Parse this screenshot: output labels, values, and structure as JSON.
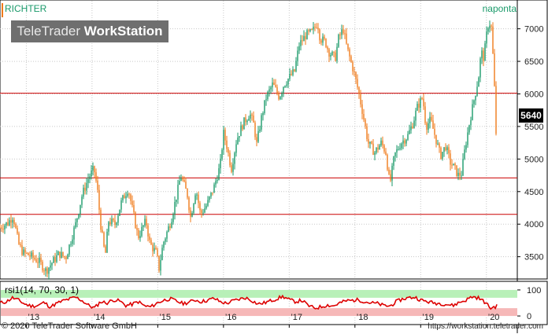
{
  "header": {
    "ticker": "RICHTER",
    "period": "naponta",
    "brand_light": "TeleTrader ",
    "brand_bold": "WorkStation"
  },
  "footer": {
    "copyright": "© 2020 TeleTrader Software GmbH",
    "source": "https://workstation.teletrader.com"
  },
  "colors": {
    "up": "#1a9a6a",
    "down": "#f07a1a",
    "hline": "#cc0000",
    "rsi_line": "#dd0000",
    "rsi_upper_band": "#b8f0b8",
    "rsi_lower_band": "#f6b8b8",
    "grid": "#c8c8c8"
  },
  "chart_data": [
    {
      "type": "candlestick",
      "title": "RICHTER",
      "x_unit": "year",
      "xlim": [
        2012.6,
        2020.47
      ],
      "ylim": [
        3170,
        7430
      ],
      "x_tick_labels": [
        "13",
        "14",
        "15",
        "16",
        "17",
        "18",
        "19",
        "20"
      ],
      "x_ticks": [
        2013,
        2014,
        2015,
        2016,
        2017,
        2018,
        2019,
        2020
      ],
      "y_ticks": [
        3500,
        4000,
        4500,
        5000,
        5500,
        6000,
        6500,
        7000
      ],
      "grid": true,
      "last_price": 5640,
      "horizontal_lines": [
        6010,
        4710,
        4150
      ],
      "price_path": [
        [
          2012.6,
          3950
        ],
        [
          2012.72,
          4020
        ],
        [
          2012.8,
          4130
        ],
        [
          2012.88,
          3700
        ],
        [
          2012.95,
          3560
        ],
        [
          2013.05,
          3520
        ],
        [
          2013.2,
          3420
        ],
        [
          2013.3,
          3280
        ],
        [
          2013.4,
          3420
        ],
        [
          2013.5,
          3550
        ],
        [
          2013.6,
          3480
        ],
        [
          2013.75,
          4000
        ],
        [
          2013.85,
          4450
        ],
        [
          2013.95,
          4720
        ],
        [
          2014.03,
          4850
        ],
        [
          2014.08,
          4550
        ],
        [
          2014.13,
          4000
        ],
        [
          2014.2,
          3500
        ],
        [
          2014.25,
          4050
        ],
        [
          2014.35,
          4000
        ],
        [
          2014.45,
          4350
        ],
        [
          2014.55,
          4550
        ],
        [
          2014.62,
          4200
        ],
        [
          2014.7,
          3800
        ],
        [
          2014.82,
          4050
        ],
        [
          2014.88,
          3700
        ],
        [
          2014.98,
          3550
        ],
        [
          2015.02,
          3320
        ],
        [
          2015.08,
          3700
        ],
        [
          2015.2,
          4050
        ],
        [
          2015.3,
          4500
        ],
        [
          2015.35,
          4750
        ],
        [
          2015.45,
          4450
        ],
        [
          2015.5,
          4100
        ],
        [
          2015.58,
          4550
        ],
        [
          2015.65,
          4150
        ],
        [
          2015.75,
          4300
        ],
        [
          2015.85,
          4550
        ],
        [
          2015.95,
          4900
        ],
        [
          2016.0,
          5400
        ],
        [
          2016.05,
          5200
        ],
        [
          2016.12,
          4850
        ],
        [
          2016.2,
          5300
        ],
        [
          2016.3,
          5550
        ],
        [
          2016.4,
          5700
        ],
        [
          2016.47,
          5500
        ],
        [
          2016.5,
          5200
        ],
        [
          2016.58,
          5650
        ],
        [
          2016.65,
          5950
        ],
        [
          2016.75,
          6150
        ],
        [
          2016.85,
          5950
        ],
        [
          2016.92,
          6150
        ],
        [
          2017.0,
          6250
        ],
        [
          2017.08,
          6350
        ],
        [
          2017.15,
          6750
        ],
        [
          2017.25,
          6900
        ],
        [
          2017.35,
          6950
        ],
        [
          2017.43,
          7100
        ],
        [
          2017.47,
          6850
        ],
        [
          2017.55,
          6800
        ],
        [
          2017.6,
          6650
        ],
        [
          2017.7,
          6550
        ],
        [
          2017.75,
          6850
        ],
        [
          2017.82,
          7000
        ],
        [
          2017.88,
          6700
        ],
        [
          2017.98,
          6350
        ],
        [
          2018.05,
          6050
        ],
        [
          2018.12,
          5700
        ],
        [
          2018.2,
          5250
        ],
        [
          2018.3,
          5100
        ],
        [
          2018.4,
          5250
        ],
        [
          2018.47,
          5100
        ],
        [
          2018.53,
          4600
        ],
        [
          2018.6,
          5050
        ],
        [
          2018.7,
          5250
        ],
        [
          2018.8,
          5350
        ],
        [
          2018.88,
          5550
        ],
        [
          2018.95,
          5800
        ],
        [
          2019.03,
          5950
        ],
        [
          2019.08,
          5500
        ],
        [
          2019.15,
          5600
        ],
        [
          2019.22,
          5350
        ],
        [
          2019.3,
          5050
        ],
        [
          2019.38,
          5200
        ],
        [
          2019.45,
          4950
        ],
        [
          2019.52,
          4850
        ],
        [
          2019.57,
          4750
        ],
        [
          2019.62,
          4780
        ],
        [
          2019.68,
          5200
        ],
        [
          2019.75,
          5600
        ],
        [
          2019.82,
          5950
        ],
        [
          2019.88,
          6250
        ],
        [
          2019.92,
          6650
        ],
        [
          2019.96,
          6550
        ],
        [
          2020.02,
          7050
        ],
        [
          2020.07,
          7100
        ],
        [
          2020.11,
          6400
        ],
        [
          2020.13,
          5900
        ],
        [
          2020.15,
          5300
        ],
        [
          2020.16,
          5640
        ]
      ]
    },
    {
      "type": "line",
      "title": "rsi1(14, 70, 30, 1)",
      "ylim": [
        -30,
        130
      ],
      "y_ticks": [
        0,
        100
      ],
      "bands": {
        "upper": [
          70,
          100
        ],
        "lower": [
          0,
          30
        ]
      },
      "series": [
        {
          "values": [
            50,
            55,
            70,
            60,
            45,
            38,
            40,
            52,
            35,
            48,
            58,
            65,
            72,
            60,
            42,
            30,
            55,
            50,
            62,
            58,
            40,
            45,
            55,
            38,
            35,
            50,
            60,
            66,
            58,
            48,
            52,
            62,
            55,
            60,
            68,
            55,
            48,
            58,
            64,
            70,
            60,
            46,
            50,
            58,
            66,
            75,
            62,
            55,
            60,
            40,
            30,
            35,
            42,
            38,
            50,
            58,
            60,
            62,
            55,
            50,
            48,
            40,
            38,
            55,
            65,
            70,
            72,
            60,
            55,
            50,
            48,
            45,
            40,
            52,
            60,
            74,
            70,
            55,
            30,
            38
          ]
        }
      ]
    }
  ]
}
